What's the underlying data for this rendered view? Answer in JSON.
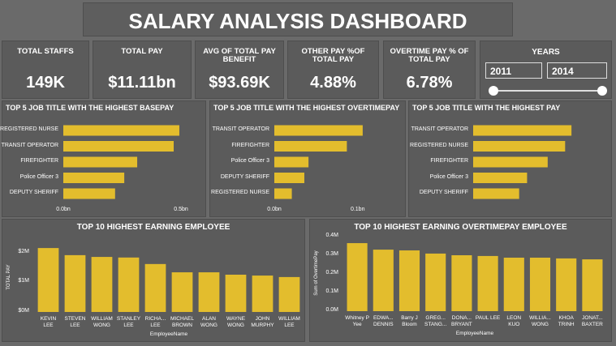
{
  "header": {
    "title": "SALARY ANALYSIS DASHBOARD"
  },
  "kpis": [
    {
      "label": "TOTAL STAFFS",
      "value": "149K"
    },
    {
      "label": "TOTAL PAY",
      "value": "$11.11bn"
    },
    {
      "label": "AVG OF TOTAL PAY BENEFIT",
      "value": "$93.69K"
    },
    {
      "label": "OTHER PAY %OF TOTAL PAY",
      "value": "4.88%"
    },
    {
      "label": "OVERTIME PAY % OF TOTAL PAY",
      "value": "6.78%"
    }
  ],
  "slicer": {
    "label": "YEARS",
    "from": "2011",
    "to": "2014"
  },
  "chart_data": [
    {
      "type": "hbar",
      "title": "TOP 5 JOB TITLE WITH THE HIGHEST BASEPAY",
      "color": "#e3bd2d",
      "categories": [
        "REGISTERED NURSE",
        "TRANSIT OPERATOR",
        "FIREFIGHTER",
        "Police Officer 3",
        "DEPUTY SHERIFF"
      ],
      "values": [
        0.493,
        0.469,
        0.314,
        0.259,
        0.22
      ],
      "xlim": [
        0,
        0.5
      ],
      "xticks": [
        {
          "value": 0,
          "label": "0.0bn"
        },
        {
          "value": 0.5,
          "label": "0.5bn"
        }
      ]
    },
    {
      "type": "hbar",
      "title": "TOP 5 JOB TITLE WITH THE HIGHEST OVERTIMEPAY",
      "color": "#e3bd2d",
      "categories": [
        "TRANSIT OPERATOR",
        "FIREFIGHTER",
        "Police Officer 3",
        "DEPUTY SHERIFF",
        "REGISTERED NURSE"
      ],
      "values": [
        0.106,
        0.087,
        0.041,
        0.036,
        0.021
      ],
      "xlim": [
        0,
        0.11
      ],
      "xticks": [
        {
          "value": 0,
          "label": "0.0bn"
        },
        {
          "value": 0.1,
          "label": "0.1bn"
        }
      ]
    },
    {
      "type": "hbar",
      "title": "TOP 5 JOB TITLE WITH THE HIGHEST PAY",
      "color": "#e3bd2d",
      "categories": [
        "TRANSIT OPERATOR",
        "REGISTERED NURSE",
        "FIREFIGHTER",
        "Police Officer 3",
        "DEPUTY SHERIFF"
      ],
      "values": [
        0.62,
        0.58,
        0.47,
        0.34,
        0.29
      ],
      "xlim": [
        0,
        0.65
      ]
    },
    {
      "type": "vbar",
      "title": "TOP 10 HIGHEST EARNING EMPLOYEE",
      "color": "#e3bd2d",
      "categories": [
        "KEVIN LEE",
        "STEVEN LEE",
        "WILLIAM WONG",
        "STANLEY LEE",
        "RICHA... LEE",
        "MICHAEL BROWN",
        "ALAN WONG",
        "WAYNE WONG",
        "JOHN MURPHY",
        "WILLIAM LEE"
      ],
      "values": [
        2.16,
        1.92,
        1.86,
        1.84,
        1.62,
        1.34,
        1.34,
        1.26,
        1.23,
        1.18
      ],
      "ylim": [
        0,
        2.3
      ],
      "yticks": [
        {
          "value": 0,
          "label": "$0M"
        },
        {
          "value": 1,
          "label": "$1M"
        },
        {
          "value": 2,
          "label": "$2M"
        }
      ],
      "x_label": "EmployeeName",
      "y_label": "TOTAL PAY"
    },
    {
      "type": "vbar",
      "title": "TOP 10 HIGHEST EARNING OVERTIMEPAY EMPLOYEE",
      "color": "#e3bd2d",
      "categories": [
        "Whitney P Yee",
        "EDWA... DENNIS",
        "Barry J Bloom",
        "GREG... STANG...",
        "DONA... BRYANT",
        "PAUL LEE",
        "LEON KUO",
        "WILLIA... WONG",
        "KHOA TRINH",
        "JONAT... BAXTER"
      ],
      "values": [
        0.365,
        0.33,
        0.326,
        0.309,
        0.3,
        0.296,
        0.287,
        0.287,
        0.283,
        0.278
      ],
      "ylim": [
        0,
        0.4
      ],
      "yticks": [
        {
          "value": 0,
          "label": "0.0M"
        },
        {
          "value": 0.1,
          "label": "0.1M"
        },
        {
          "value": 0.2,
          "label": "0.2M"
        },
        {
          "value": 0.3,
          "label": "0.3M"
        },
        {
          "value": 0.4,
          "label": "0.4M"
        }
      ],
      "x_label": "EmployeeName",
      "y_label": "Sum of OvertimePay"
    }
  ]
}
